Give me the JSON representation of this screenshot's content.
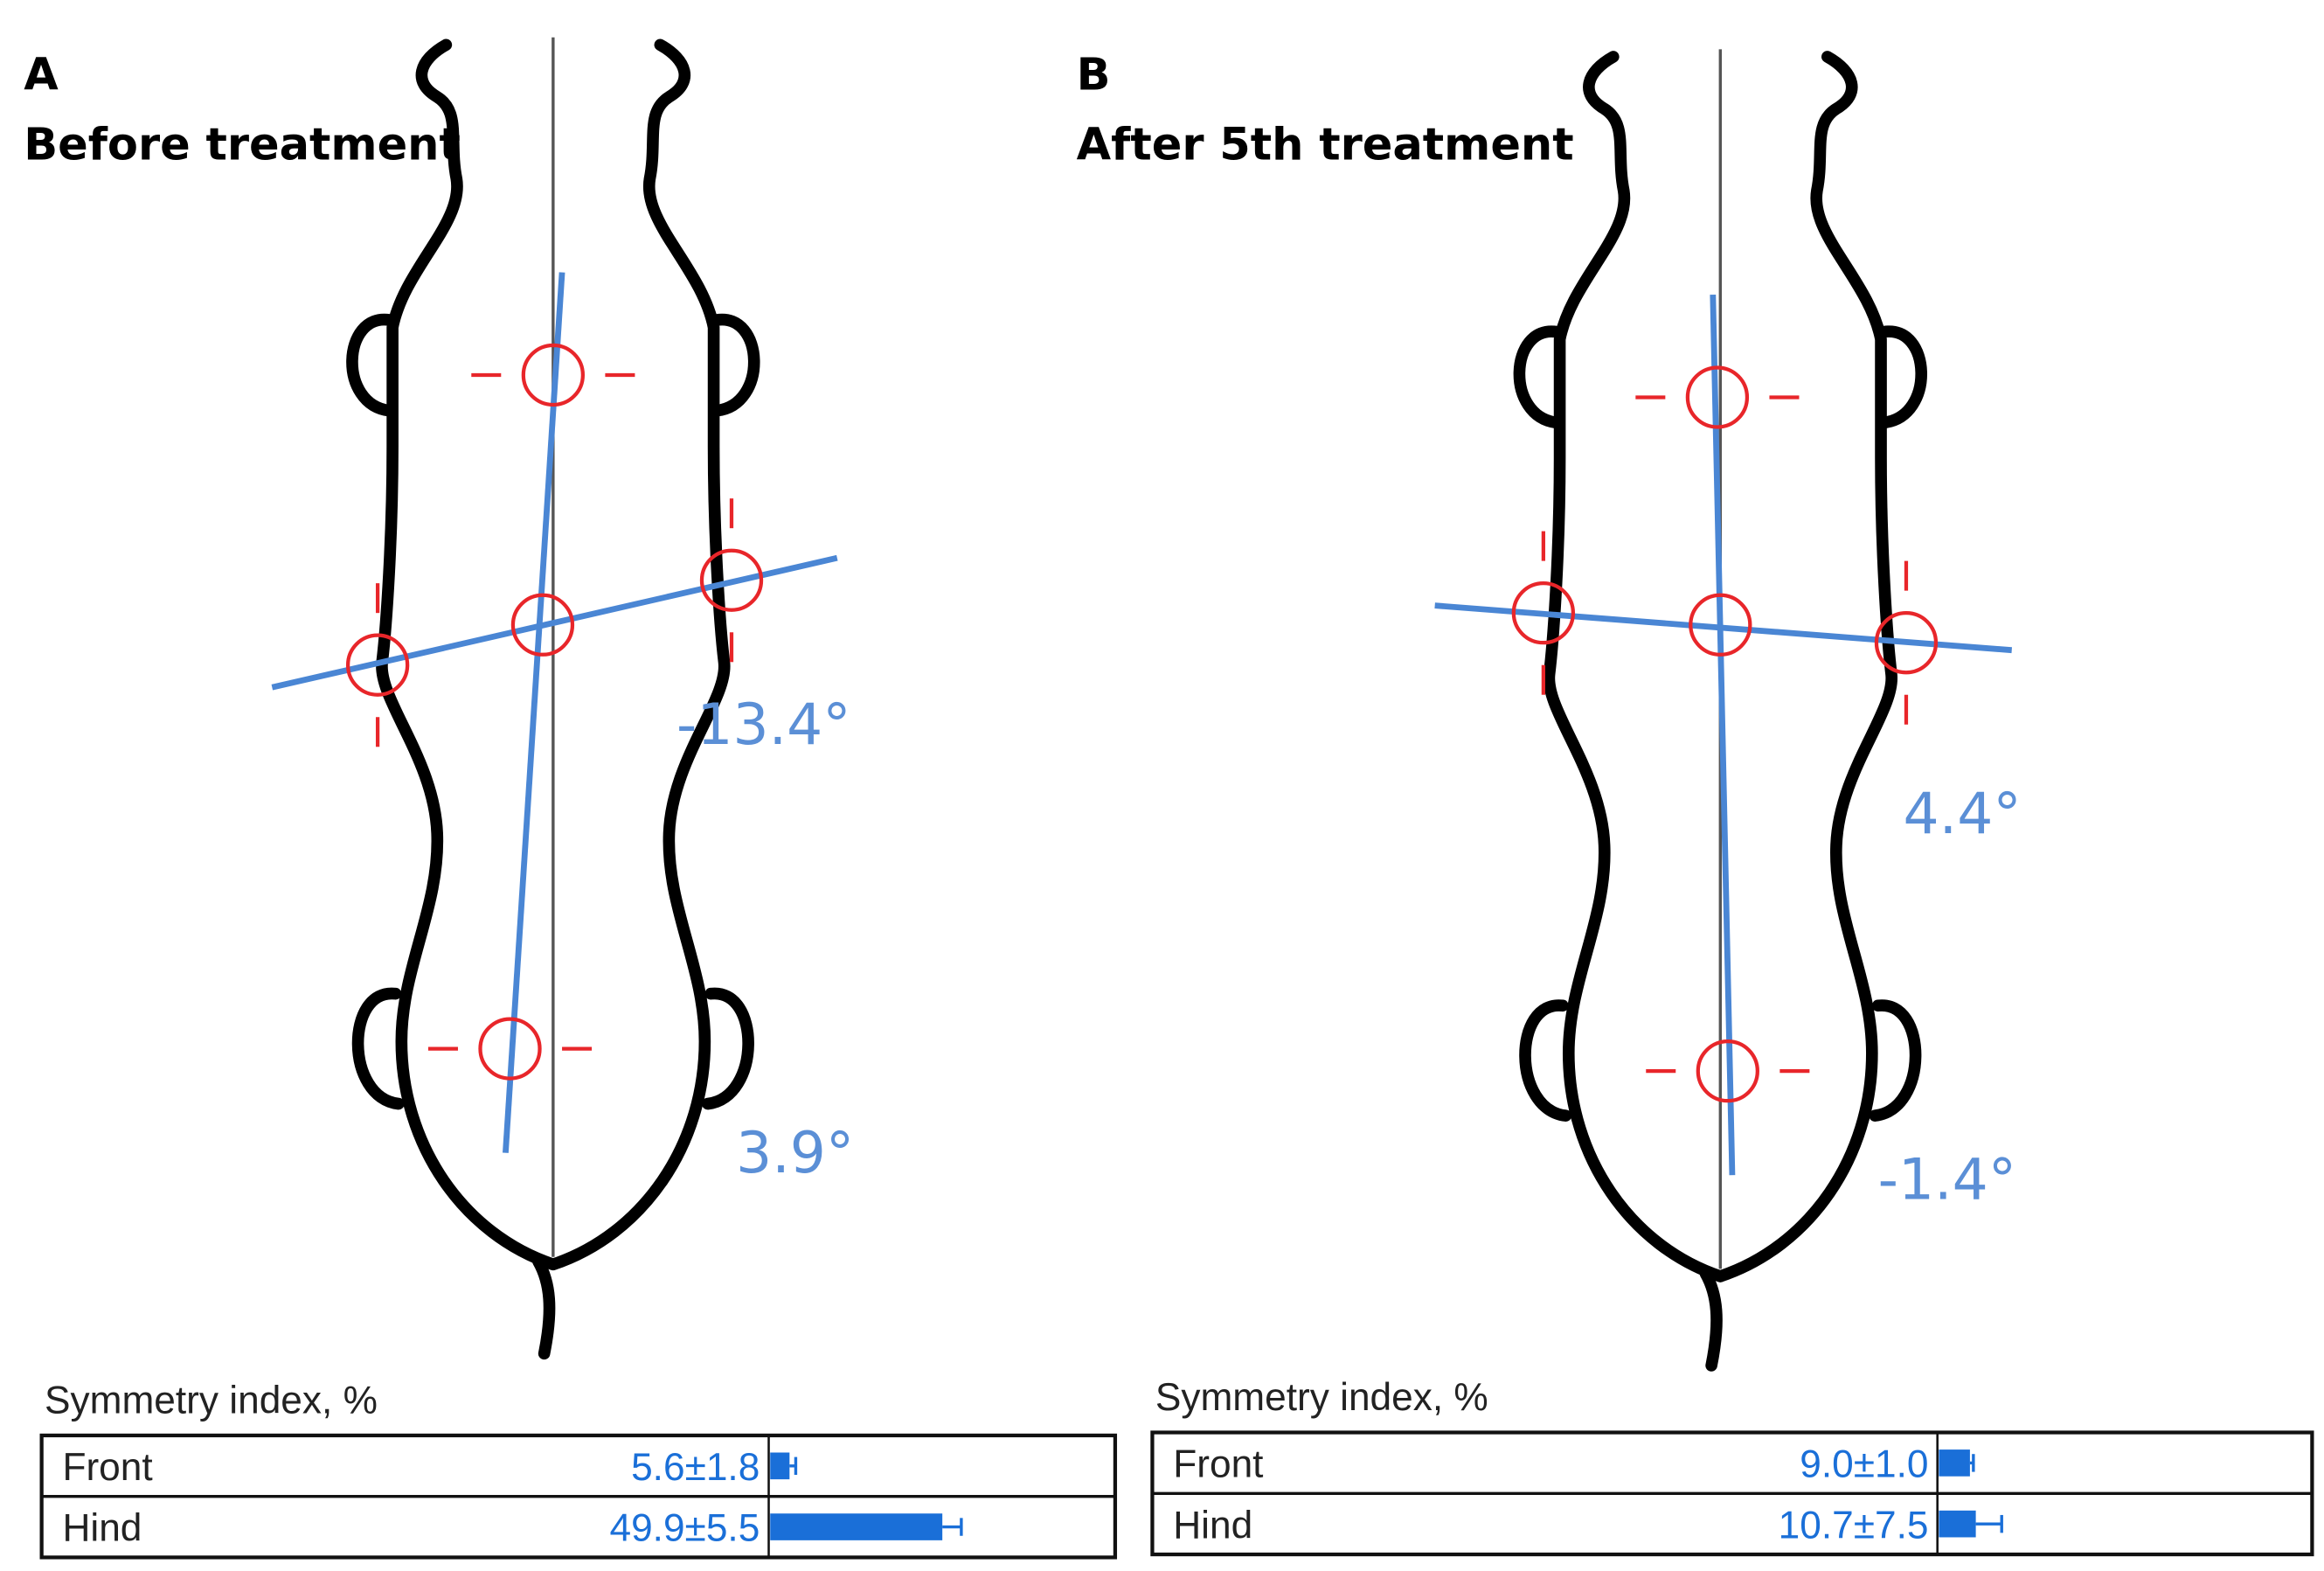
{
  "panels": [
    {
      "letter": "A",
      "title": "Before treatment",
      "angles": [
        "-13.4°",
        "3.9°"
      ],
      "symmetry": {
        "title": "Symmetry index, %",
        "rows": [
          {
            "label": "Front",
            "value": 5.6,
            "error": 1.8,
            "value_label": "5.6±1.8"
          },
          {
            "label": "Hind",
            "value": 49.9,
            "error": 5.5,
            "value_label": "49.9±5.5"
          }
        ]
      }
    },
    {
      "letter": "B",
      "title": "After 5th treatment",
      "angles": [
        "4.4°",
        "-1.4°"
      ],
      "symmetry": {
        "title": "Symmetry index, %",
        "rows": [
          {
            "label": "Front",
            "value": 9.0,
            "error": 1.0,
            "value_label": "9.0±1.0"
          },
          {
            "label": "Hind",
            "value": 10.7,
            "error": 7.5,
            "value_label": "10.7±7.5"
          }
        ]
      }
    }
  ]
}
